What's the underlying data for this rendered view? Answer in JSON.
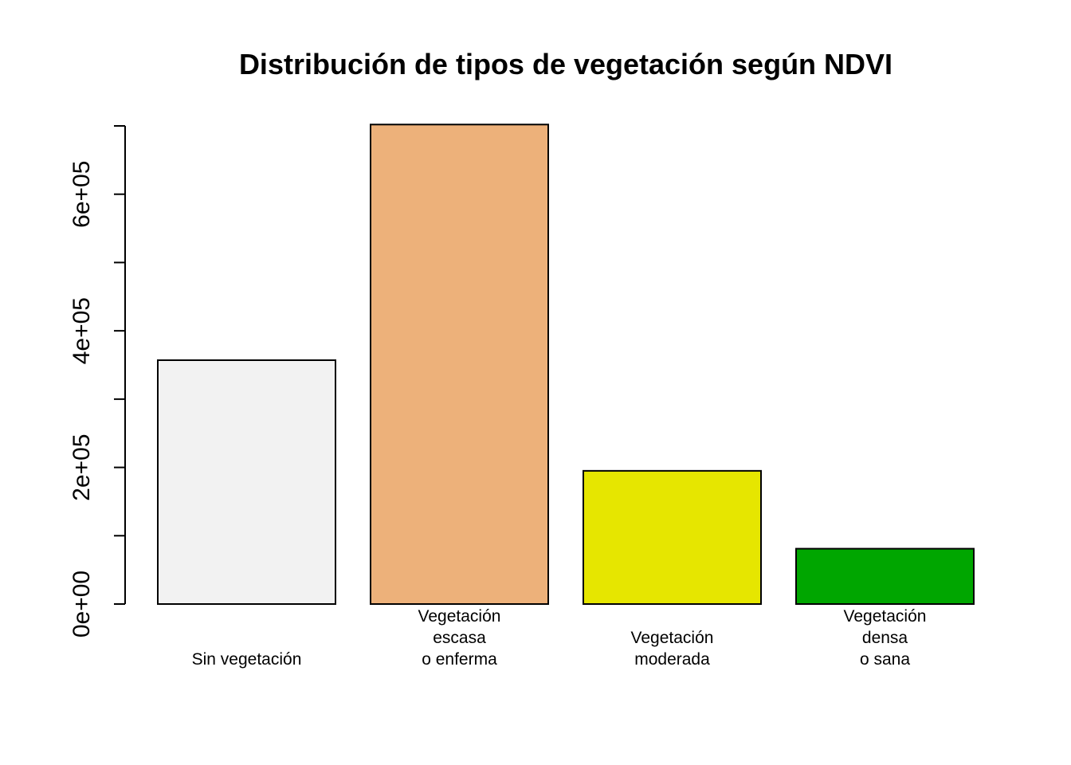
{
  "chart_data": {
    "type": "bar",
    "title": "Distribución de tipos de vegetación según NDVI",
    "xlabel": "",
    "ylabel": "",
    "categories": [
      [
        "Sin vegetación"
      ],
      [
        "Vegetación",
        "escasa",
        "o enferma"
      ],
      [
        "Vegetación",
        "moderada"
      ],
      [
        "Vegetación",
        "densa",
        "o sana"
      ]
    ],
    "values": [
      357000,
      702000,
      195000,
      81000
    ],
    "colors": [
      "#F2F2F2",
      "#EDB17A",
      "#E6E600",
      "#00A600"
    ],
    "ylim": [
      0,
      700000
    ],
    "yticks": [
      0,
      100000,
      200000,
      300000,
      400000,
      500000,
      600000,
      700000
    ],
    "ytick_labels": [
      {
        "value": 0,
        "label": "0e+00"
      },
      {
        "value": 200000,
        "label": "2e+05"
      },
      {
        "value": 400000,
        "label": "4e+05"
      },
      {
        "value": 600000,
        "label": "6e+05"
      }
    ],
    "grid": false,
    "legend": "none"
  }
}
